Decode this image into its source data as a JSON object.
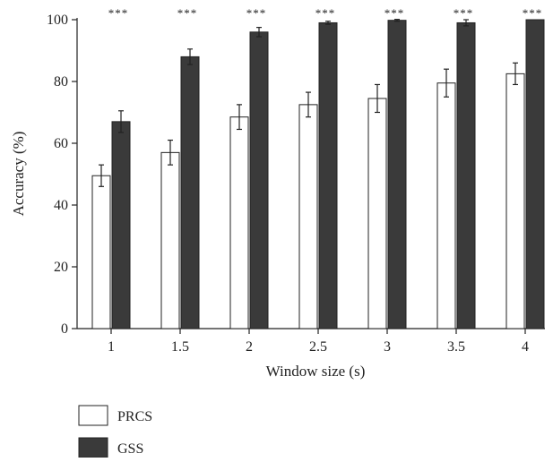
{
  "chart_data": {
    "type": "bar",
    "xlabel": "Window size (s)",
    "ylabel": "Accuracy (%)",
    "ylim": [
      0,
      100
    ],
    "yticks": [
      "0",
      "20",
      "40",
      "60",
      "80",
      "100"
    ],
    "categories": [
      "1",
      "1.5",
      "2",
      "2.5",
      "3",
      "3.5",
      "4"
    ],
    "series": [
      {
        "name": "PRCS",
        "color": "#ffffff",
        "values": [
          49.5,
          57,
          68.5,
          72.5,
          74.5,
          79.5,
          82.5
        ],
        "errors": [
          3.5,
          4,
          4,
          4,
          4.5,
          4.5,
          3.5
        ]
      },
      {
        "name": "GSS",
        "color": "#3a3a3a",
        "values": [
          67,
          88,
          96,
          99,
          99.8,
          99,
          100
        ],
        "errors": [
          3.5,
          2.5,
          1.5,
          0.5,
          0.3,
          1,
          0
        ]
      }
    ],
    "significance": [
      "***",
      "***",
      "***",
      "***",
      "***",
      "***",
      "***"
    ],
    "legend": {
      "position": "bottom-left"
    },
    "grid": false
  }
}
